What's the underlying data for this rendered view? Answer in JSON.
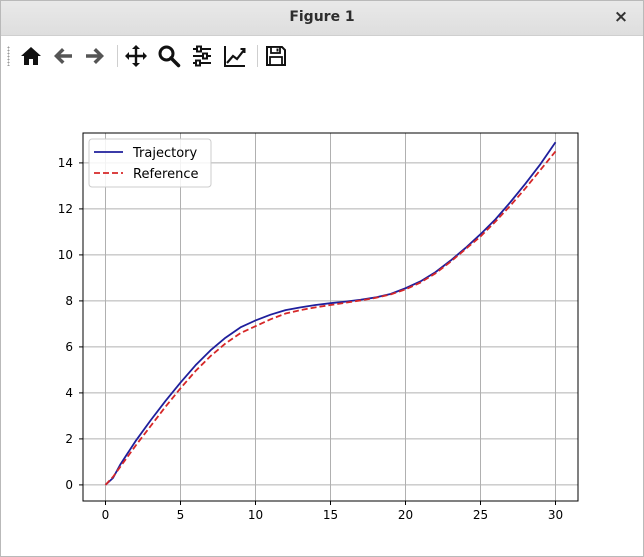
{
  "window": {
    "title": "Figure 1",
    "close_glyph": "×"
  },
  "toolbar": {
    "buttons": [
      {
        "icon": "home-icon"
      },
      {
        "icon": "back-arrow-icon"
      },
      {
        "icon": "forward-arrow-icon"
      },
      {
        "icon": "pan-move-icon"
      },
      {
        "icon": "zoom-magnifier-icon"
      },
      {
        "icon": "configure-subplots-icon"
      },
      {
        "icon": "edit-axis-lines-icon"
      },
      {
        "icon": "save-floppy-icon"
      }
    ]
  },
  "chart_data": {
    "type": "line",
    "title": "",
    "xlabel": "",
    "ylabel": "",
    "xlim": [
      -1.5,
      31.5
    ],
    "ylim": [
      -0.7,
      15.3
    ],
    "xticks": [
      0,
      5,
      10,
      15,
      20,
      25,
      30
    ],
    "yticks": [
      0,
      2,
      4,
      6,
      8,
      10,
      12,
      14
    ],
    "grid": true,
    "legend": "top-left",
    "series": [
      {
        "name": "Trajectory",
        "color": "#1f1f9c",
        "style": "solid",
        "x": [
          0,
          0.5,
          1,
          2,
          3,
          4,
          5,
          6,
          7,
          8,
          9,
          10,
          11,
          12,
          13,
          14,
          15,
          16,
          17,
          18,
          19,
          20,
          21,
          22,
          23,
          24,
          25,
          26,
          27,
          28,
          29,
          30
        ],
        "y": [
          0,
          0.3,
          0.9,
          1.9,
          2.8,
          3.65,
          4.45,
          5.2,
          5.85,
          6.4,
          6.85,
          7.15,
          7.4,
          7.6,
          7.72,
          7.82,
          7.9,
          7.97,
          8.05,
          8.15,
          8.3,
          8.55,
          8.85,
          9.25,
          9.75,
          10.3,
          10.9,
          11.55,
          12.3,
          13.1,
          13.95,
          14.9
        ]
      },
      {
        "name": "Reference",
        "color": "#d62728",
        "style": "dashed",
        "x": [
          0,
          0.5,
          1,
          2,
          3,
          4,
          5,
          6,
          7,
          8,
          9,
          10,
          11,
          12,
          13,
          14,
          15,
          16,
          17,
          18,
          19,
          20,
          21,
          22,
          23,
          24,
          25,
          26,
          27,
          28,
          29,
          30
        ],
        "y": [
          0,
          0.35,
          0.8,
          1.7,
          2.55,
          3.4,
          4.2,
          4.95,
          5.6,
          6.15,
          6.6,
          6.9,
          7.2,
          7.45,
          7.6,
          7.72,
          7.82,
          7.92,
          8.02,
          8.13,
          8.28,
          8.5,
          8.8,
          9.2,
          9.7,
          10.25,
          10.8,
          11.45,
          12.15,
          12.9,
          13.7,
          14.5
        ]
      }
    ]
  }
}
